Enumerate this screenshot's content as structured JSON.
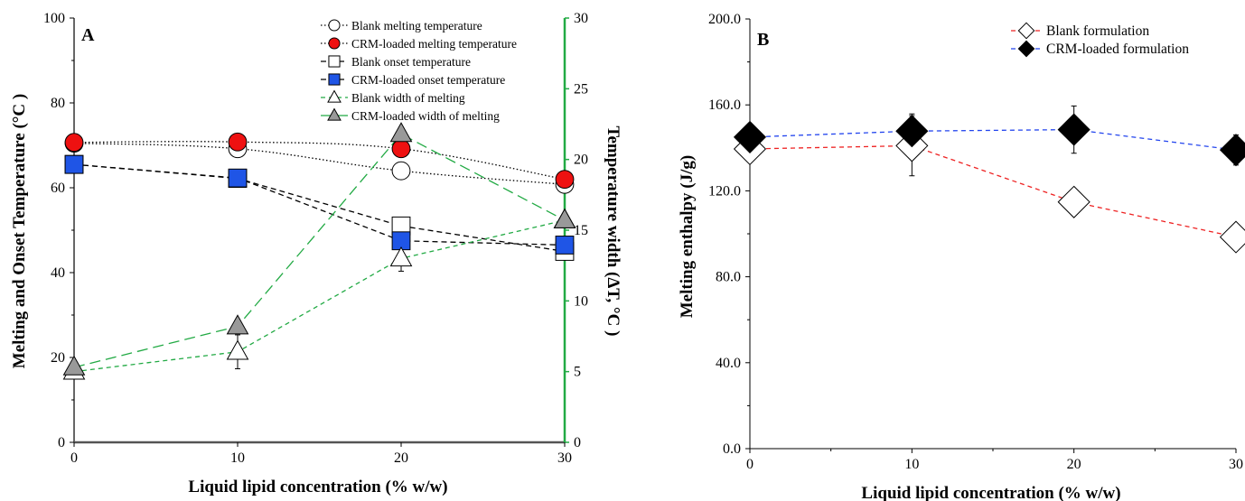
{
  "chart_data": [
    {
      "id": "A",
      "type": "line",
      "panel_label": "A",
      "xlabel": "Liquid lipid concentration (% w/w)",
      "ylabel": "Melting and Onset Temperature (°C )",
      "y2label": "Temperature width (ΔT, °C )",
      "x": [
        0,
        10,
        20,
        30
      ],
      "xlim": [
        0,
        30
      ],
      "xticks": [
        "0",
        "10",
        "20",
        "30"
      ],
      "ylim": [
        0,
        100
      ],
      "yticks": [
        "0",
        "20",
        "40",
        "60",
        "80",
        "100"
      ],
      "y2lim": [
        0,
        30
      ],
      "y2ticks": [
        "0",
        "5",
        "10",
        "15",
        "20",
        "25",
        "30"
      ],
      "grid": false,
      "legend_position": "top-right",
      "series": [
        {
          "name": "Blank melting temperature",
          "axis": "left",
          "values": [
            70.5,
            69.2,
            64.0,
            60.8
          ],
          "marker": "circle",
          "marker_fill": "#ffffff",
          "line_color": "#000000",
          "dash": "dotted",
          "errors": [
            0,
            1.5,
            0,
            0
          ]
        },
        {
          "name": "CRM-loaded melting temperature",
          "axis": "left",
          "values": [
            70.7,
            70.8,
            69.2,
            62.0
          ],
          "marker": "circle",
          "marker_fill": "#ee1111",
          "line_color": "#000000",
          "dash": "dotted",
          "errors": [
            0,
            0,
            0,
            0
          ]
        },
        {
          "name": "Blank onset temperature",
          "axis": "left",
          "values": [
            65.5,
            62.2,
            51.0,
            45.0
          ],
          "marker": "square",
          "marker_fill": "#ffffff",
          "line_color": "#000000",
          "dash": "dashed",
          "errors": [
            0,
            0,
            0,
            0
          ]
        },
        {
          "name": "CRM-loaded onset temperature",
          "axis": "left",
          "values": [
            65.5,
            62.3,
            47.5,
            46.5
          ],
          "marker": "square",
          "marker_fill": "#1f55e6",
          "line_color": "#000000",
          "dash": "dashed",
          "errors": [
            0,
            0,
            0,
            0
          ]
        },
        {
          "name": "Blank width of melting",
          "axis": "right",
          "values": [
            5.0,
            6.4,
            13.0,
            15.7
          ],
          "marker": "triangle",
          "marker_fill": "#ffffff",
          "line_color": "#22aa44",
          "dash": "thin-dashed",
          "errors": [
            0.5,
            1.2,
            0.9,
            0
          ]
        },
        {
          "name": "CRM-loaded width of melting",
          "axis": "right",
          "values": [
            5.3,
            8.2,
            21.8,
            15.7
          ],
          "marker": "triangle",
          "marker_fill": "#999999",
          "line_color": "#22aa44",
          "dash": "long-dashed",
          "errors": [
            0,
            0,
            0,
            0
          ]
        }
      ]
    },
    {
      "id": "B",
      "type": "line",
      "panel_label": "B",
      "xlabel": "Liquid lipid concentration (% w/w)",
      "ylabel": "Melting enthalpy (J/g)",
      "x": [
        0,
        10,
        20,
        30
      ],
      "xlim": [
        0,
        30
      ],
      "xticks": [
        "0",
        "10",
        "20",
        "30"
      ],
      "ylim": [
        0,
        200
      ],
      "yticks": [
        "0.0",
        "40.0",
        "80.0",
        "120.0",
        "160.0",
        "200.0"
      ],
      "grid": false,
      "legend_position": "top-right",
      "series": [
        {
          "name": "Blank formulation",
          "values": [
            139.5,
            141.0,
            114.8,
            98.5
          ],
          "marker": "diamond",
          "marker_fill": "#ffffff",
          "line_color": "#ee2222",
          "dash": "dashed",
          "errors": [
            0,
            14,
            0,
            0
          ]
        },
        {
          "name": "CRM-loaded formulation",
          "values": [
            145.0,
            147.8,
            148.5,
            139.0
          ],
          "marker": "diamond",
          "marker_fill": "#000000",
          "line_color": "#2244ee",
          "dash": "dashed",
          "errors": [
            0,
            8,
            11,
            7
          ]
        }
      ]
    }
  ]
}
